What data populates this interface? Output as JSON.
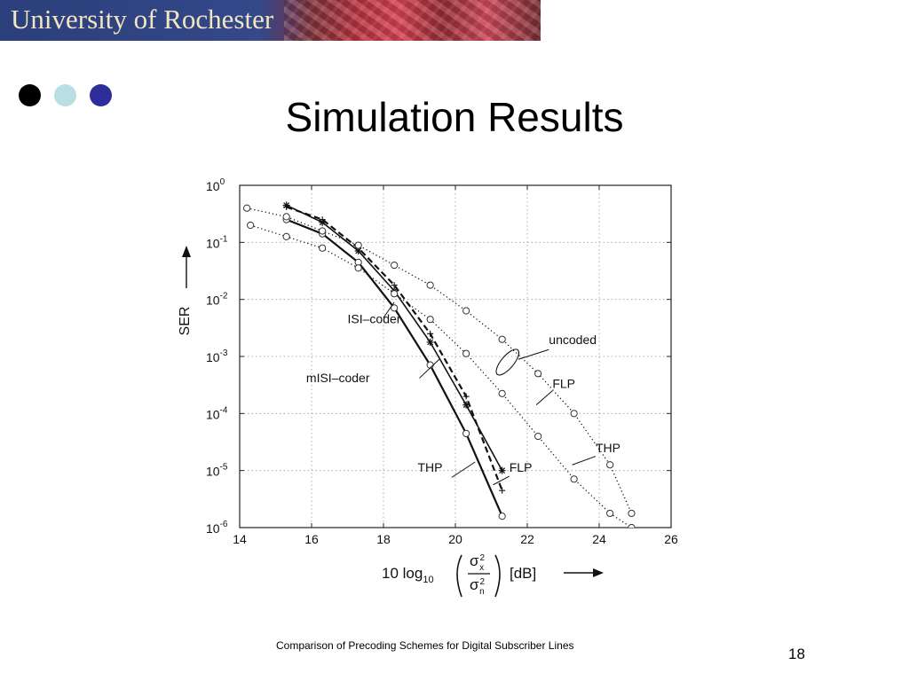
{
  "banner": {
    "title": "University of Rochester"
  },
  "slide": {
    "title": "Simulation Results"
  },
  "footer": {
    "text": "Comparison of Precoding Schemes for Digital Subscriber Lines",
    "page_number": "18"
  },
  "chart_data": {
    "type": "line",
    "title": "",
    "xlabel": "10 log10(σx²/σn²) [dB]",
    "xlabel_parts": {
      "prefix": "10 log",
      "sub": "10",
      "num_sym": "σ",
      "num_sub": "x",
      "den_sym": "σ",
      "den_sub": "n",
      "sup": "2",
      "unit": "[dB]"
    },
    "ylabel": "SER",
    "x_ticks": [
      14,
      16,
      18,
      20,
      22,
      24,
      26
    ],
    "y_ticks": [
      {
        "base": "10",
        "exp": "0"
      },
      {
        "base": "10",
        "exp": "-1"
      },
      {
        "base": "10",
        "exp": "-2"
      },
      {
        "base": "10",
        "exp": "-3"
      },
      {
        "base": "10",
        "exp": "-4"
      },
      {
        "base": "10",
        "exp": "-5"
      },
      {
        "base": "10",
        "exp": "-6"
      }
    ],
    "xlim": [
      14,
      26
    ],
    "ylim_log10": [
      -6,
      0
    ],
    "y_scale": "log",
    "grid": "dotted",
    "series": [
      {
        "style": "solid-circle",
        "x": [
          15.3,
          16.3,
          17.3,
          18.3,
          19.3,
          20.3,
          21.3
        ],
        "log10_y": [
          -0.6,
          -0.85,
          -1.35,
          -2.15,
          -3.15,
          -4.35,
          -5.8
        ]
      },
      {
        "style": "solid-star",
        "x": [
          15.3,
          16.3,
          17.3,
          18.3,
          19.3,
          20.3,
          21.3
        ],
        "log10_y": [
          -0.35,
          -0.65,
          -1.15,
          -1.85,
          -2.75,
          -3.85,
          -5.0
        ]
      },
      {
        "style": "dash-plus",
        "x": [
          15.3,
          16.3,
          17.3,
          18.3,
          19.3,
          20.3,
          21.3
        ],
        "log10_y": [
          -0.38,
          -0.6,
          -1.1,
          -1.75,
          -2.6,
          -3.7,
          -5.35
        ]
      },
      {
        "style": "dotted-circle",
        "x": [
          14.2,
          15.3,
          16.3,
          17.3,
          18.3,
          19.3,
          20.3,
          21.3,
          22.3,
          23.3,
          24.3,
          24.9
        ],
        "log10_y": [
          -0.4,
          -0.55,
          -0.8,
          -1.05,
          -1.4,
          -1.75,
          -2.2,
          -2.7,
          -3.3,
          -4.0,
          -4.9,
          -5.75
        ]
      },
      {
        "style": "dotted-circle",
        "x": [
          14.3,
          15.3,
          16.3,
          17.3,
          18.3,
          19.3,
          20.3,
          21.3,
          22.3,
          23.3,
          24.3,
          24.9
        ],
        "log10_y": [
          -0.7,
          -0.9,
          -1.1,
          -1.45,
          -1.9,
          -2.35,
          -2.95,
          -3.65,
          -4.4,
          -5.15,
          -5.75,
          -6.0
        ]
      }
    ],
    "annotations": [
      {
        "text": "ISI–coder",
        "x": 17.0,
        "log10_y": -2.42
      },
      {
        "text": "mISI–coder",
        "x": 15.85,
        "log10_y": -3.45
      },
      {
        "text": "uncoded",
        "x": 22.6,
        "log10_y": -2.78
      },
      {
        "text": "FLP",
        "x": 22.7,
        "log10_y": -3.55
      },
      {
        "text": "THP",
        "x": 23.9,
        "log10_y": -4.68
      },
      {
        "text": "THP",
        "x": 18.95,
        "log10_y": -5.02
      },
      {
        "text": "FLP",
        "x": 21.5,
        "log10_y": -5.02
      }
    ]
  }
}
